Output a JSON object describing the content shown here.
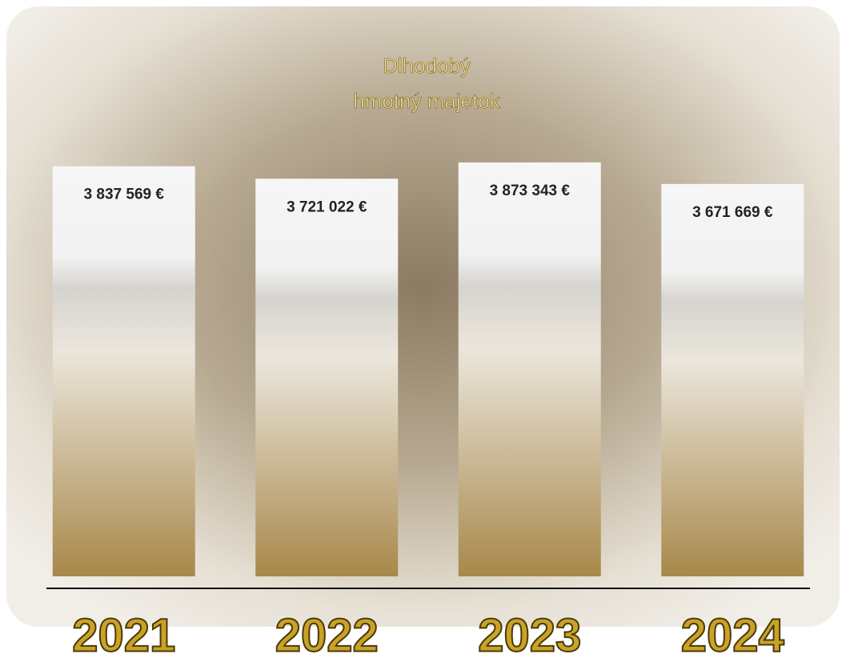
{
  "chart_data": {
    "type": "bar",
    "title": [
      "Dlhodobý",
      "hmotný majetok"
    ],
    "categories": [
      "2021",
      "2022",
      "2023",
      "2024"
    ],
    "values": [
      3837569,
      3721022,
      3873343,
      3671669
    ],
    "value_labels": [
      "3 837 569 €",
      "3 721 022 €",
      "3 873 343 €",
      "3 671 669 €"
    ],
    "color": "#a8884a",
    "ylim": [
      0,
      4000000
    ]
  }
}
